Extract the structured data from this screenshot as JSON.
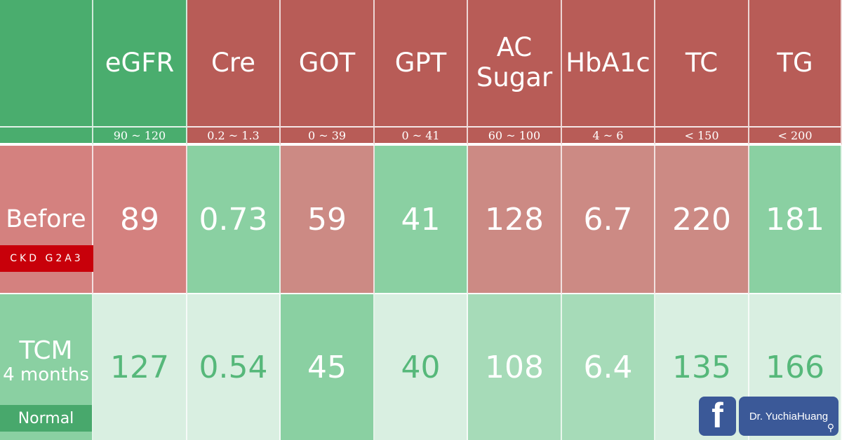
{
  "columns": [
    {
      "name": "eGFR",
      "range": "90 ~ 120",
      "before": "89",
      "after": "127"
    },
    {
      "name": "Cre",
      "range": "0.2 ~ 1.3",
      "before": "0.73",
      "after": "0.54"
    },
    {
      "name": "GOT",
      "range": "0 ~ 39",
      "before": "59",
      "after": "45"
    },
    {
      "name": "GPT",
      "range": "0 ~ 41",
      "before": "41",
      "after": "40"
    },
    {
      "name_line1": "AC",
      "name_line2": "Sugar",
      "range": "60 ~ 100",
      "before": "128",
      "after": "108"
    },
    {
      "name": "HbA1c",
      "range": "4 ~ 6",
      "before": "6.7",
      "after": "6.4"
    },
    {
      "name": "TC",
      "range": "< 150",
      "before": "220",
      "after": "135"
    },
    {
      "name": "TG",
      "range": "< 200",
      "before": "181",
      "after": "166"
    }
  ],
  "rows": {
    "before": {
      "label": "Before",
      "badge": "CKD G2A3"
    },
    "after": {
      "label_line1": "TCM",
      "label_line2": "4 months",
      "badge": "Normal"
    }
  },
  "branding": {
    "icon": "facebook-icon",
    "name": "Dr. YuchiaHuang",
    "search_icon": "search-icon"
  },
  "colors": {
    "green_header": "#4aad6e",
    "red_header": "#b85c57",
    "before_pink": "#d4817f",
    "green_mid": "#8ad0a2",
    "green_light": "#d9efe1",
    "badge_red": "#c8000a",
    "facebook_blue": "#3b5998"
  }
}
